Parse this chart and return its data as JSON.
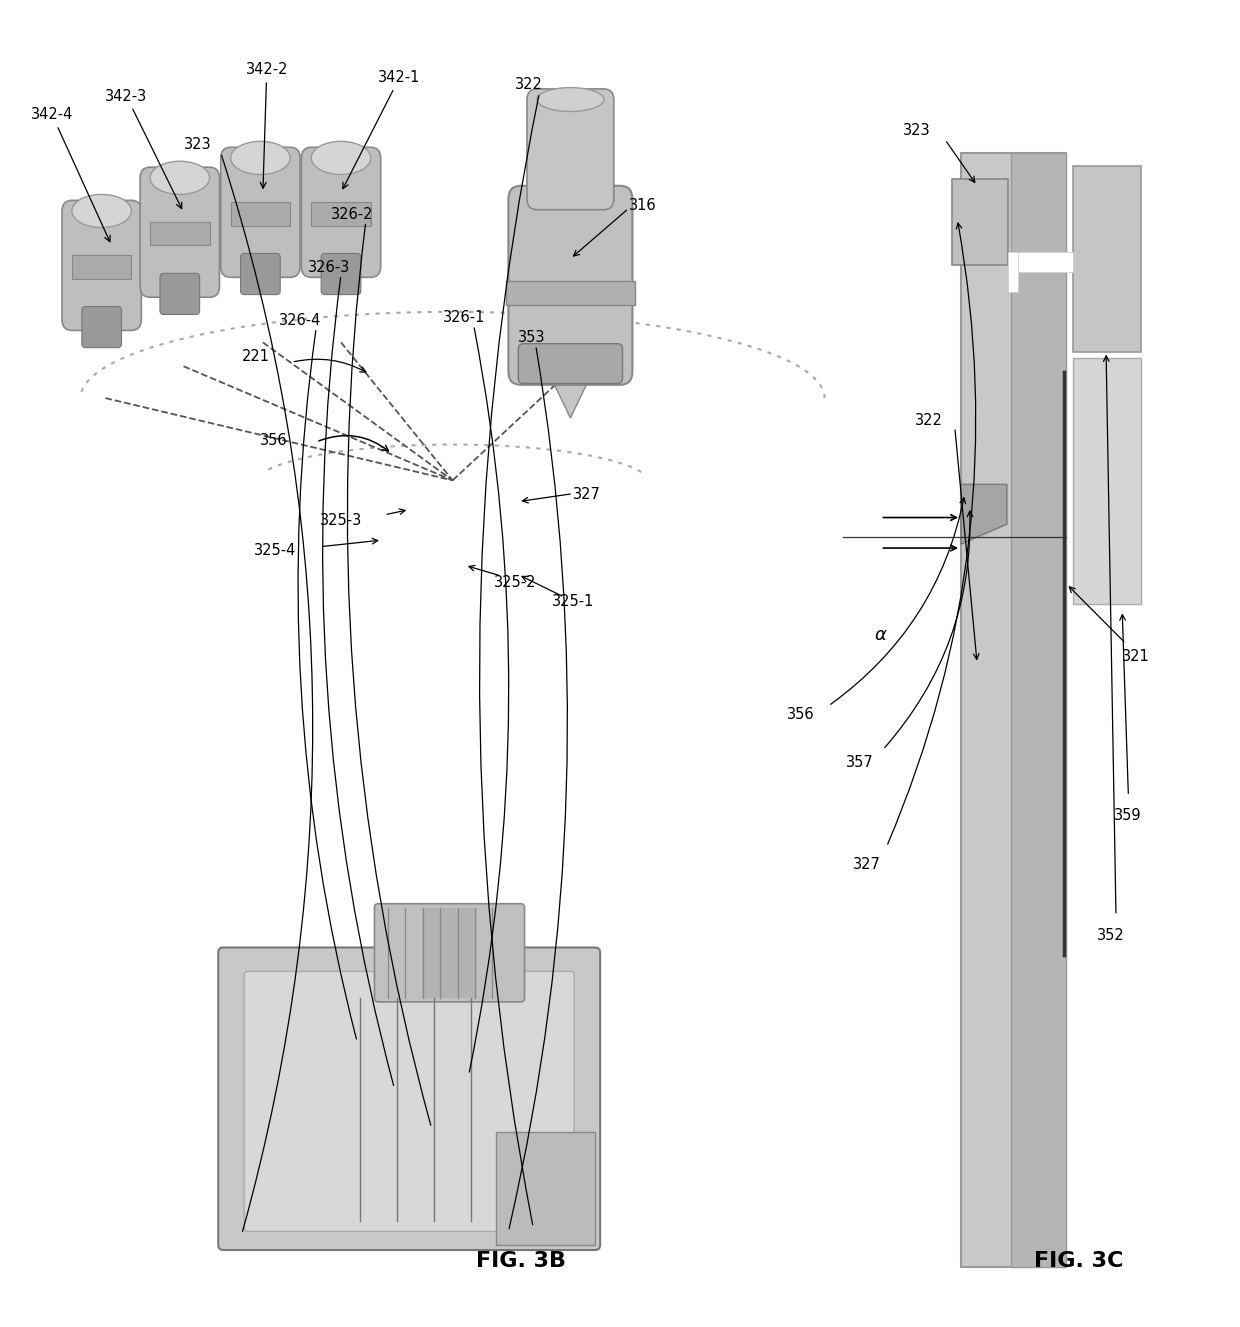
{
  "bg_color": "#ffffff",
  "fig_width": 12.4,
  "fig_height": 13.27,
  "dpi": 100,
  "fig3b_label": "FIG. 3B",
  "fig3c_label": "FIG. 3C",
  "gray_light": "#d0d0d0",
  "gray_mid": "#c0c0c0",
  "gray_dark": "#a8a8a8",
  "gray_darker": "#888888",
  "line_color": "#555555"
}
